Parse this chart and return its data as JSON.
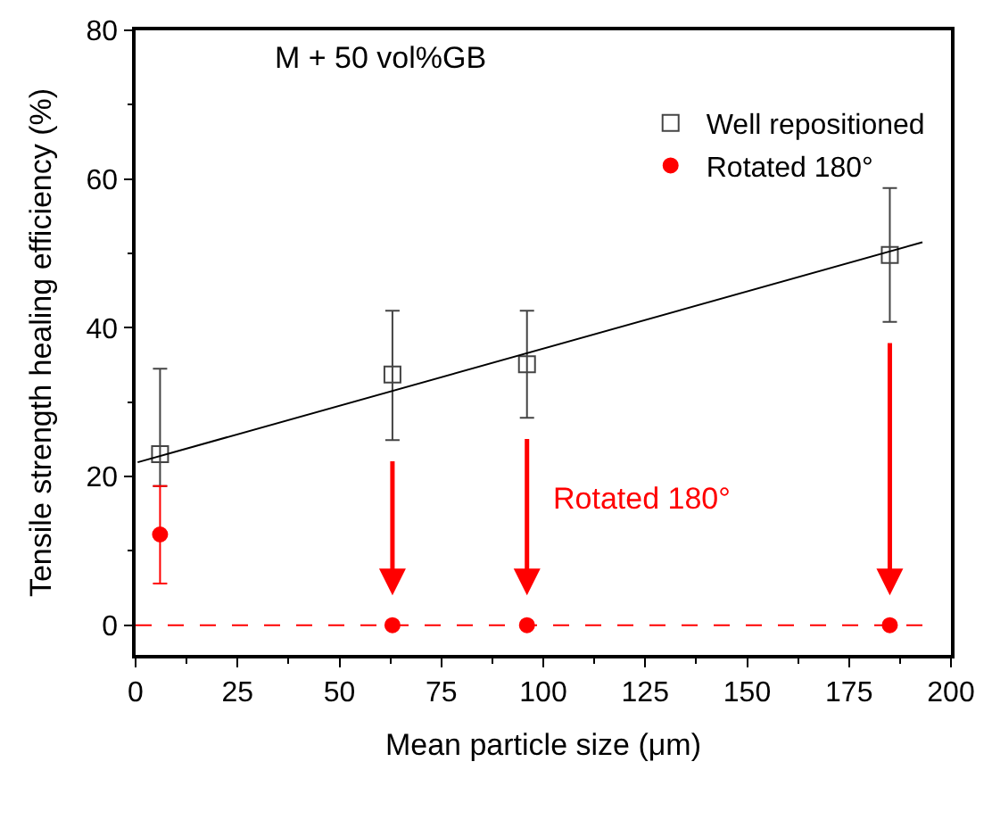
{
  "chart_data": {
    "type": "scatter",
    "xlabel": "Mean particle size (μm)",
    "ylabel": "Tensile strength healing efficiency (%)",
    "annotations": [
      "M + 50 vol%GB",
      "Rotated 180°"
    ],
    "xlim": [
      0,
      200
    ],
    "xticks": [
      0,
      25,
      50,
      75,
      100,
      125,
      150,
      175,
      200
    ],
    "ylim": [
      -4,
      80
    ],
    "yticks": [
      0,
      20,
      40,
      60,
      80
    ],
    "legend": "top right",
    "ref_lines": [
      {
        "axis": "y",
        "value": 0,
        "color": "#ff0000",
        "line_style": "dashed"
      }
    ],
    "series": [
      {
        "name": "Well repositioned",
        "color": "#444444",
        "marker": "square",
        "x": [
          6,
          63,
          96,
          185
        ],
        "values": [
          23.0,
          33.7,
          35.1,
          49.8
        ],
        "errors": [
          [
            18.7,
            34.5
          ],
          [
            24.9,
            42.3
          ],
          [
            27.9,
            42.3
          ],
          [
            40.8,
            58.8
          ]
        ]
      },
      {
        "name": "Rotated 180°",
        "color": "#ff0000",
        "marker": "circle",
        "x": [
          6,
          63,
          96,
          185
        ],
        "values": [
          12.2,
          0,
          0,
          0
        ],
        "errors": [
          [
            5.6,
            18.7
          ],
          null,
          null,
          null
        ]
      },
      {
        "type": "line",
        "color": "#000000",
        "marker": "none",
        "x": [
          0.5,
          193
        ],
        "values": [
          21.9,
          51.5
        ]
      }
    ]
  }
}
